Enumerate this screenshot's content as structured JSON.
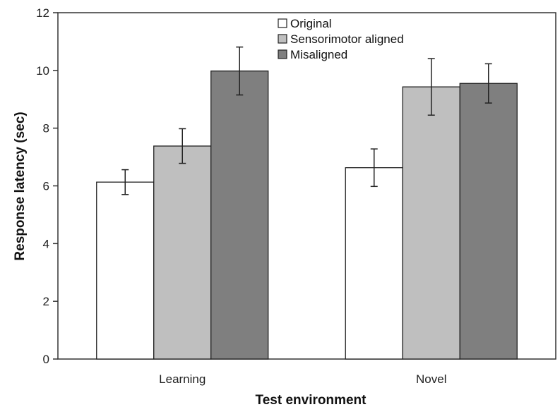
{
  "chart_data": {
    "type": "bar",
    "title": "",
    "xlabel": "Test environment",
    "ylabel": "Response latency (sec)",
    "categories": [
      "Learning",
      "Novel"
    ],
    "ylim": [
      0,
      12
    ],
    "yticks": [
      "0",
      "2",
      "4",
      "6",
      "8",
      "10",
      "12"
    ],
    "grid": false,
    "legend_position": "top-center",
    "series": [
      {
        "name": "Original",
        "color": "#ffffff",
        "values": [
          6.13,
          6.63
        ],
        "errors": [
          0.43,
          0.65
        ]
      },
      {
        "name": "Sensorimotor aligned",
        "color": "#bfbfbf",
        "values": [
          7.38,
          9.43
        ],
        "errors": [
          0.6,
          0.98
        ]
      },
      {
        "name": "Misaligned",
        "color": "#7f7f7f",
        "values": [
          9.98,
          9.55
        ],
        "errors": [
          0.83,
          0.68
        ]
      }
    ]
  }
}
